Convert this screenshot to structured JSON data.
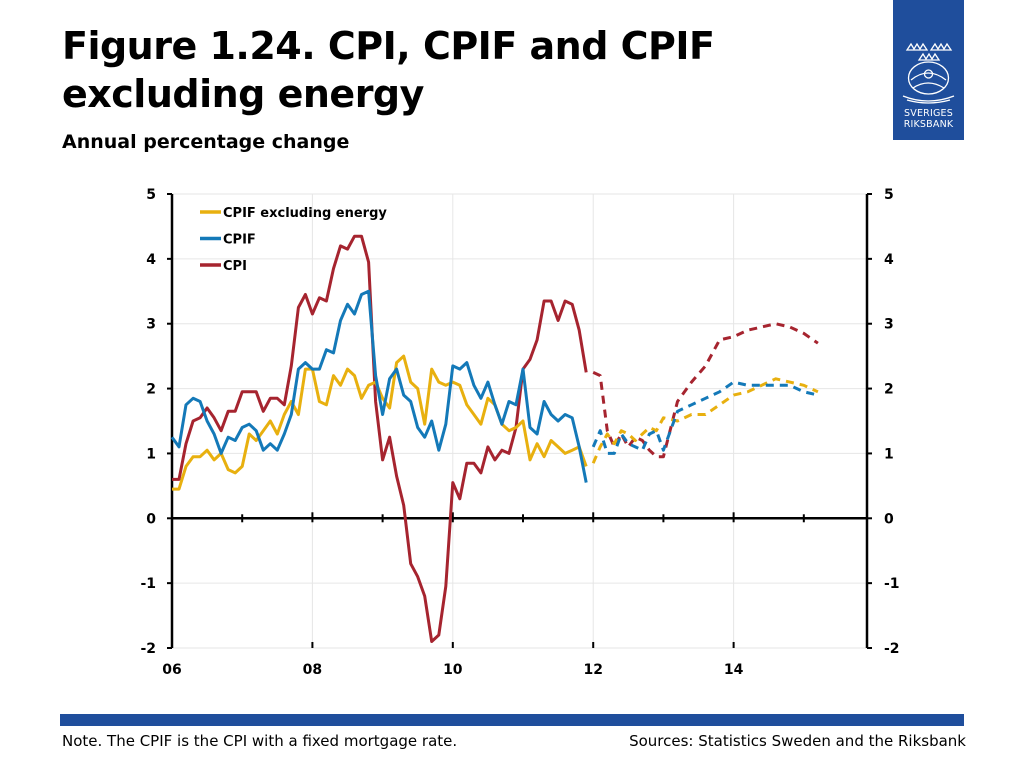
{
  "title": "Figure 1.24. CPI, CPIF and CPIF excluding energy",
  "subtitle": "Annual percentage change",
  "logo": {
    "line1": "SVERIGES",
    "line2": "RIKSBANK"
  },
  "note": "Note. The CPIF is the CPI with a fixed mortgage rate.",
  "sources": "Sources: Statistics Sweden and the Riksbank",
  "colors": {
    "brand": "#1f4e9c",
    "cpi": "#a6242f",
    "cpif": "#1479b8",
    "cpif_ex": "#e8b00f"
  },
  "chart_data": {
    "type": "line",
    "title": "Figure 1.24. CPI, CPIF and CPIF excluding energy",
    "subtitle": "Annual percentage change",
    "ylim": [
      -2,
      5
    ],
    "xlim": [
      2006.0,
      2015.9
    ],
    "y_ticks": [
      "-2",
      "-1",
      "0",
      "1",
      "2",
      "3",
      "4",
      "5"
    ],
    "y_tick_values": [
      -2,
      -1,
      0,
      1,
      2,
      3,
      4,
      5
    ],
    "x_ticks": [
      "06",
      "08",
      "10",
      "12",
      "14"
    ],
    "x_tick_values": [
      2006,
      2008,
      2010,
      2012,
      2014
    ],
    "grid": true,
    "legend_position": "top-left",
    "legend": [
      "CPIF excluding energy",
      "CPIF",
      "CPI"
    ],
    "forecast_start": 2012.0,
    "series": [
      {
        "name": "CPIF excluding energy",
        "color": "#e8b00f",
        "x": [
          2006.0,
          2006.1,
          2006.2,
          2006.3,
          2006.4,
          2006.5,
          2006.6,
          2006.7,
          2006.8,
          2006.9,
          2007.0,
          2007.1,
          2007.2,
          2007.3,
          2007.4,
          2007.5,
          2007.6,
          2007.7,
          2007.8,
          2007.9,
          2008.0,
          2008.1,
          2008.2,
          2008.3,
          2008.4,
          2008.5,
          2008.6,
          2008.7,
          2008.8,
          2008.9,
          2009.0,
          2009.1,
          2009.2,
          2009.3,
          2009.4,
          2009.5,
          2009.6,
          2009.7,
          2009.8,
          2009.9,
          2010.0,
          2010.1,
          2010.2,
          2010.3,
          2010.4,
          2010.5,
          2010.6,
          2010.7,
          2010.8,
          2010.9,
          2011.0,
          2011.1,
          2011.2,
          2011.3,
          2011.4,
          2011.5,
          2011.6,
          2011.7,
          2011.8,
          2011.9
        ],
        "values": [
          0.45,
          0.45,
          0.8,
          0.95,
          0.95,
          1.05,
          0.9,
          1.0,
          0.75,
          0.7,
          0.8,
          1.3,
          1.2,
          1.35,
          1.5,
          1.3,
          1.6,
          1.8,
          1.6,
          2.3,
          2.3,
          1.8,
          1.75,
          2.2,
          2.05,
          2.3,
          2.2,
          1.85,
          2.05,
          2.1,
          1.85,
          1.7,
          2.4,
          2.5,
          2.1,
          2.0,
          1.45,
          2.3,
          2.1,
          2.05,
          2.1,
          2.05,
          1.75,
          1.6,
          1.45,
          1.85,
          1.75,
          1.45,
          1.35,
          1.4,
          1.5,
          0.9,
          1.15,
          0.95,
          1.2,
          1.1,
          1.0,
          1.05,
          1.1,
          0.8
        ],
        "forecast": {
          "x": [
            2012.0,
            2012.1,
            2012.2,
            2012.3,
            2012.4,
            2012.5,
            2012.6,
            2012.7,
            2012.8,
            2012.9,
            2013.0,
            2013.2,
            2013.4,
            2013.6,
            2013.8,
            2014.0,
            2014.2,
            2014.4,
            2014.6,
            2014.8,
            2015.0,
            2015.2
          ],
          "values": [
            0.85,
            1.1,
            1.3,
            1.15,
            1.35,
            1.3,
            1.2,
            1.3,
            1.4,
            1.35,
            1.55,
            1.5,
            1.6,
            1.6,
            1.75,
            1.9,
            1.95,
            2.05,
            2.15,
            2.1,
            2.05,
            1.95
          ]
        }
      },
      {
        "name": "CPIF",
        "color": "#1479b8",
        "x": [
          2006.0,
          2006.1,
          2006.2,
          2006.3,
          2006.4,
          2006.5,
          2006.6,
          2006.7,
          2006.8,
          2006.9,
          2007.0,
          2007.1,
          2007.2,
          2007.3,
          2007.4,
          2007.5,
          2007.6,
          2007.7,
          2007.8,
          2007.9,
          2008.0,
          2008.1,
          2008.2,
          2008.3,
          2008.4,
          2008.5,
          2008.6,
          2008.7,
          2008.8,
          2008.9,
          2009.0,
          2009.1,
          2009.2,
          2009.3,
          2009.4,
          2009.5,
          2009.6,
          2009.7,
          2009.8,
          2009.9,
          2010.0,
          2010.1,
          2010.2,
          2010.3,
          2010.4,
          2010.5,
          2010.6,
          2010.7,
          2010.8,
          2010.9,
          2011.0,
          2011.1,
          2011.2,
          2011.3,
          2011.4,
          2011.5,
          2011.6,
          2011.7,
          2011.8,
          2011.9
        ],
        "values": [
          1.25,
          1.1,
          1.75,
          1.85,
          1.8,
          1.5,
          1.3,
          1.0,
          1.25,
          1.2,
          1.4,
          1.45,
          1.35,
          1.05,
          1.15,
          1.05,
          1.3,
          1.6,
          2.3,
          2.4,
          2.3,
          2.3,
          2.6,
          2.55,
          3.05,
          3.3,
          3.15,
          3.45,
          3.5,
          2.2,
          1.6,
          2.15,
          2.3,
          1.9,
          1.8,
          1.4,
          1.25,
          1.5,
          1.05,
          1.45,
          2.35,
          2.3,
          2.4,
          2.05,
          1.85,
          2.1,
          1.75,
          1.45,
          1.8,
          1.75,
          2.3,
          1.4,
          1.3,
          1.8,
          1.6,
          1.5,
          1.6,
          1.55,
          1.1,
          0.55
        ],
        "forecast": {
          "x": [
            2012.0,
            2012.1,
            2012.2,
            2012.3,
            2012.4,
            2012.5,
            2012.6,
            2012.7,
            2012.8,
            2012.9,
            2013.0,
            2013.2,
            2013.4,
            2013.6,
            2013.8,
            2014.0,
            2014.2,
            2014.4,
            2014.6,
            2014.8,
            2015.0,
            2015.2
          ],
          "values": [
            1.1,
            1.35,
            1.0,
            1.0,
            1.3,
            1.15,
            1.1,
            1.05,
            1.3,
            1.35,
            1.05,
            1.65,
            1.75,
            1.85,
            1.95,
            2.1,
            2.05,
            2.05,
            2.05,
            2.05,
            1.95,
            1.9
          ]
        }
      },
      {
        "name": "CPI",
        "color": "#a6242f",
        "x": [
          2006.0,
          2006.1,
          2006.2,
          2006.3,
          2006.4,
          2006.5,
          2006.6,
          2006.7,
          2006.8,
          2006.9,
          2007.0,
          2007.1,
          2007.2,
          2007.3,
          2007.4,
          2007.5,
          2007.6,
          2007.7,
          2007.8,
          2007.9,
          2008.0,
          2008.1,
          2008.2,
          2008.3,
          2008.4,
          2008.5,
          2008.6,
          2008.7,
          2008.8,
          2008.9,
          2009.0,
          2009.1,
          2009.2,
          2009.3,
          2009.4,
          2009.5,
          2009.6,
          2009.7,
          2009.8,
          2009.9,
          2010.0,
          2010.1,
          2010.2,
          2010.3,
          2010.4,
          2010.5,
          2010.6,
          2010.7,
          2010.8,
          2010.9,
          2011.0,
          2011.1,
          2011.2,
          2011.3,
          2011.4,
          2011.5,
          2011.6,
          2011.7,
          2011.8,
          2011.9
        ],
        "values": [
          0.6,
          0.6,
          1.15,
          1.5,
          1.55,
          1.7,
          1.55,
          1.35,
          1.65,
          1.65,
          1.95,
          1.95,
          1.95,
          1.65,
          1.85,
          1.85,
          1.75,
          2.35,
          3.25,
          3.45,
          3.15,
          3.4,
          3.35,
          3.85,
          4.2,
          4.15,
          4.35,
          4.35,
          3.95,
          1.8,
          0.9,
          1.25,
          0.65,
          0.2,
          -0.7,
          -0.9,
          -1.2,
          -1.9,
          -1.8,
          -1.05,
          0.55,
          0.3,
          0.85,
          0.85,
          0.7,
          1.1,
          0.9,
          1.05,
          1.0,
          1.4,
          2.3,
          2.45,
          2.75,
          3.35,
          3.35,
          3.05,
          3.35,
          3.3,
          2.9,
          2.25
        ],
        "forecast": {
          "x": [
            2012.0,
            2012.1,
            2012.2,
            2012.3,
            2012.4,
            2012.5,
            2012.6,
            2012.7,
            2012.8,
            2012.9,
            2013.0,
            2013.2,
            2013.4,
            2013.6,
            2013.8,
            2014.0,
            2014.2,
            2014.4,
            2014.6,
            2014.8,
            2015.0,
            2015.2
          ],
          "values": [
            2.25,
            2.2,
            1.35,
            1.1,
            1.3,
            1.1,
            1.25,
            1.2,
            1.05,
            0.95,
            0.95,
            1.8,
            2.1,
            2.35,
            2.75,
            2.8,
            2.9,
            2.95,
            3.0,
            2.95,
            2.85,
            2.7
          ]
        }
      }
    ]
  }
}
